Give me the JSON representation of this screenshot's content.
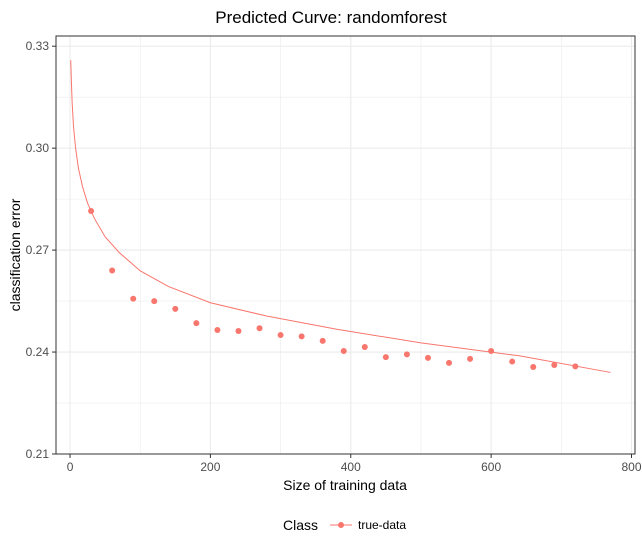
{
  "chart_data": {
    "type": "scatter",
    "title": "Predicted Curve: randomforest",
    "xlabel": "Size of training data",
    "ylabel": "classification error",
    "xlim": [
      -20,
      805
    ],
    "ylim": [
      0.21,
      0.333
    ],
    "x_ticks": [
      0,
      200,
      400,
      600,
      800
    ],
    "y_ticks": [
      0.21,
      0.24,
      0.27,
      0.3,
      0.33
    ],
    "x_tick_labels": [
      "0",
      "200",
      "400",
      "600",
      "800"
    ],
    "y_tick_labels": [
      "0.21",
      "0.24",
      "0.27",
      "0.30",
      "0.33"
    ],
    "grid": true,
    "legend": {
      "position": "bottom",
      "title": "Class",
      "entries": [
        "true-data"
      ]
    },
    "colors": {
      "series": "#f8766d",
      "grid": "#ebebeb",
      "border": "#333333"
    },
    "series": [
      {
        "name": "true-data",
        "points": [
          [
            30,
            0.2815
          ],
          [
            60,
            0.264
          ],
          [
            90,
            0.2557
          ],
          [
            120,
            0.255
          ],
          [
            150,
            0.2527
          ],
          [
            180,
            0.2485
          ],
          [
            210,
            0.2465
          ],
          [
            240,
            0.2462
          ],
          [
            270,
            0.247
          ],
          [
            300,
            0.245
          ],
          [
            330,
            0.2446
          ],
          [
            360,
            0.2433
          ],
          [
            390,
            0.2403
          ],
          [
            420,
            0.2415
          ],
          [
            450,
            0.2385
          ],
          [
            480,
            0.2393
          ],
          [
            510,
            0.2383
          ],
          [
            540,
            0.2368
          ],
          [
            570,
            0.238
          ],
          [
            600,
            0.2403
          ],
          [
            630,
            0.2372
          ],
          [
            660,
            0.2356
          ],
          [
            690,
            0.2362
          ],
          [
            720,
            0.2358
          ]
        ]
      }
    ],
    "fitted_curve": {
      "name": "predicted",
      "x": [
        1,
        2,
        3,
        5,
        8,
        12,
        18,
        25,
        35,
        50,
        70,
        100,
        140,
        200,
        280,
        380,
        500,
        640,
        770
      ],
      "y": [
        0.3259,
        0.3191,
        0.3134,
        0.3062,
        0.2999,
        0.294,
        0.2885,
        0.2838,
        0.2792,
        0.2739,
        0.2693,
        0.2639,
        0.2593,
        0.2545,
        0.2506,
        0.2467,
        0.2427,
        0.2389,
        0.234
      ]
    }
  }
}
